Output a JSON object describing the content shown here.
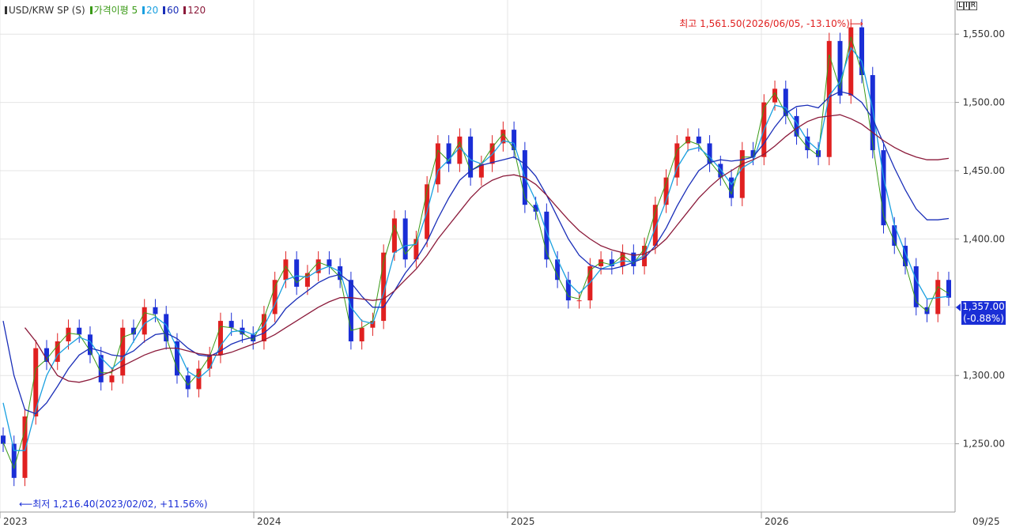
{
  "legend": {
    "symbol": "USD/KRW SP (S)",
    "items": [
      {
        "label": "가격이평 5",
        "color": "#3a9a16"
      },
      {
        "label": "20",
        "color": "#1aa0e0"
      },
      {
        "label": "60",
        "color": "#1a2eb8"
      },
      {
        "label": "120",
        "color": "#8b1a3a"
      }
    ]
  },
  "toolbar": {
    "buttons": [
      "L",
      "I",
      "R"
    ]
  },
  "last_price": {
    "value": "1,357.00",
    "change": "(-0.88%)"
  },
  "annotations": {
    "high": "최고 1,561.50(2026/06/05, -13.10%)⟶",
    "low": "⟵최저 1,216.40(2023/02/02, +11.56%)"
  },
  "colors": {
    "up": "#e02020",
    "down": "#1a2ed6",
    "grid": "#e4e4e4",
    "axis": "#bcbcbc"
  },
  "chart_data": {
    "type": "candlestick",
    "ylim": [
      1200,
      1575
    ],
    "y_ticks": [
      1250,
      1300,
      1350,
      1400,
      1450,
      1500,
      1550
    ],
    "y_tick_labels": [
      "1,250.00",
      "1,300.00",
      "",
      "1,400.00",
      "1,450.00",
      "1,500.00",
      "1,550.00"
    ],
    "x_ticks": [
      {
        "date": "2023-01",
        "label": "2023"
      },
      {
        "date": "2024-01",
        "label": "2024"
      },
      {
        "date": "2025-01",
        "label": "2025"
      },
      {
        "date": "2026-01",
        "label": "2026"
      },
      {
        "date": "2026-09",
        "label": "09/25"
      }
    ],
    "x_range": [
      "2023-01",
      "2026-08"
    ],
    "grid": true,
    "series": [
      {
        "name": "USD/KRW SP (S)",
        "kind": "close",
        "values": [
          1250,
          1225,
          1270,
          1320,
          1310,
          1325,
          1335,
          1330,
          1315,
          1295,
          1300,
          1335,
          1330,
          1350,
          1345,
          1325,
          1300,
          1290,
          1305,
          1315,
          1340,
          1335,
          1330,
          1325,
          1345,
          1370,
          1385,
          1365,
          1375,
          1385,
          1380,
          1370,
          1325,
          1335,
          1340,
          1390,
          1415,
          1385,
          1400,
          1440,
          1470,
          1455,
          1475,
          1445,
          1455,
          1470,
          1480,
          1465,
          1425,
          1420,
          1385,
          1370,
          1355,
          1355,
          1380,
          1385,
          1380,
          1390,
          1380,
          1395,
          1425,
          1445,
          1470,
          1475,
          1470,
          1455,
          1445,
          1430,
          1465,
          1460,
          1500,
          1510,
          1490,
          1475,
          1465,
          1460,
          1545,
          1505,
          1555,
          1520,
          1465,
          1410,
          1395,
          1380,
          1350,
          1345,
          1370,
          1357
        ]
      },
      {
        "name": "5",
        "kind": "ma",
        "values": [
          1251,
          1232,
          1260,
          1305,
          1312,
          1322,
          1331,
          1330,
          1318,
          1302,
          1302,
          1328,
          1331,
          1346,
          1344,
          1328,
          1305,
          1293,
          1302,
          1314,
          1336,
          1335,
          1331,
          1326,
          1342,
          1365,
          1380,
          1368,
          1374,
          1383,
          1380,
          1372,
          1333,
          1335,
          1340,
          1383,
          1410,
          1389,
          1398,
          1435,
          1465,
          1457,
          1471,
          1450,
          1455,
          1467,
          1477,
          1466,
          1430,
          1421,
          1390,
          1373,
          1358,
          1356,
          1377,
          1383,
          1381,
          1388,
          1382,
          1393,
          1420,
          1441,
          1465,
          1472,
          1469,
          1457,
          1447,
          1433,
          1460,
          1460,
          1496,
          1507,
          1492,
          1477,
          1467,
          1461,
          1535,
          1510,
          1548,
          1522,
          1470,
          1417,
          1398,
          1382,
          1354,
          1347,
          1365,
          1360
        ]
      },
      {
        "name": "20",
        "kind": "ma",
        "values": [
          1280,
          1245,
          1245,
          1275,
          1300,
          1315,
          1322,
          1328,
          1325,
          1313,
          1305,
          1312,
          1325,
          1338,
          1343,
          1337,
          1320,
          1303,
          1298,
          1305,
          1322,
          1332,
          1333,
          1330,
          1336,
          1352,
          1370,
          1373,
          1372,
          1377,
          1380,
          1376,
          1350,
          1340,
          1338,
          1360,
          1390,
          1395,
          1396,
          1420,
          1450,
          1458,
          1467,
          1458,
          1455,
          1462,
          1472,
          1470,
          1445,
          1428,
          1405,
          1385,
          1368,
          1360,
          1368,
          1378,
          1381,
          1384,
          1383,
          1388,
          1408,
          1428,
          1452,
          1465,
          1467,
          1460,
          1451,
          1440,
          1452,
          1457,
          1480,
          1498,
          1496,
          1485,
          1472,
          1465,
          1505,
          1515,
          1540,
          1530,
          1495,
          1445,
          1410,
          1390,
          1370,
          1356,
          1357,
          1358
        ]
      },
      {
        "name": "60",
        "kind": "ma",
        "values": [
          1340,
          1300,
          1275,
          1272,
          1280,
          1292,
          1305,
          1315,
          1320,
          1318,
          1315,
          1314,
          1318,
          1325,
          1330,
          1331,
          1327,
          1320,
          1315,
          1314,
          1318,
          1323,
          1326,
          1328,
          1331,
          1338,
          1349,
          1356,
          1362,
          1368,
          1372,
          1374,
          1368,
          1358,
          1350,
          1350,
          1362,
          1375,
          1385,
          1398,
          1415,
          1430,
          1443,
          1450,
          1454,
          1456,
          1458,
          1460,
          1455,
          1446,
          1432,
          1416,
          1400,
          1388,
          1381,
          1378,
          1378,
          1380,
          1383,
          1386,
          1395,
          1408,
          1424,
          1438,
          1450,
          1456,
          1458,
          1457,
          1458,
          1460,
          1470,
          1482,
          1492,
          1497,
          1498,
          1496,
          1504,
          1508,
          1506,
          1500,
          1488,
          1470,
          1452,
          1436,
          1422,
          1414,
          1414,
          1415
        ]
      },
      {
        "name": "120",
        "kind": "ma",
        "values": [
          null,
          null,
          1335,
          1325,
          1312,
          1300,
          1296,
          1295,
          1297,
          1300,
          1303,
          1307,
          1311,
          1315,
          1318,
          1320,
          1320,
          1318,
          1316,
          1315,
          1315,
          1317,
          1320,
          1323,
          1326,
          1330,
          1335,
          1340,
          1345,
          1350,
          1354,
          1357,
          1357,
          1356,
          1355,
          1356,
          1362,
          1370,
          1378,
          1388,
          1400,
          1410,
          1420,
          1430,
          1438,
          1443,
          1446,
          1447,
          1445,
          1440,
          1432,
          1423,
          1414,
          1406,
          1400,
          1395,
          1392,
          1390,
          1388,
          1389,
          1393,
          1400,
          1410,
          1420,
          1430,
          1438,
          1445,
          1450,
          1455,
          1458,
          1462,
          1468,
          1475,
          1481,
          1486,
          1489,
          1490,
          1491,
          1488,
          1484,
          1478,
          1472,
          1467,
          1463,
          1460,
          1458,
          1458,
          1459
        ]
      }
    ]
  }
}
